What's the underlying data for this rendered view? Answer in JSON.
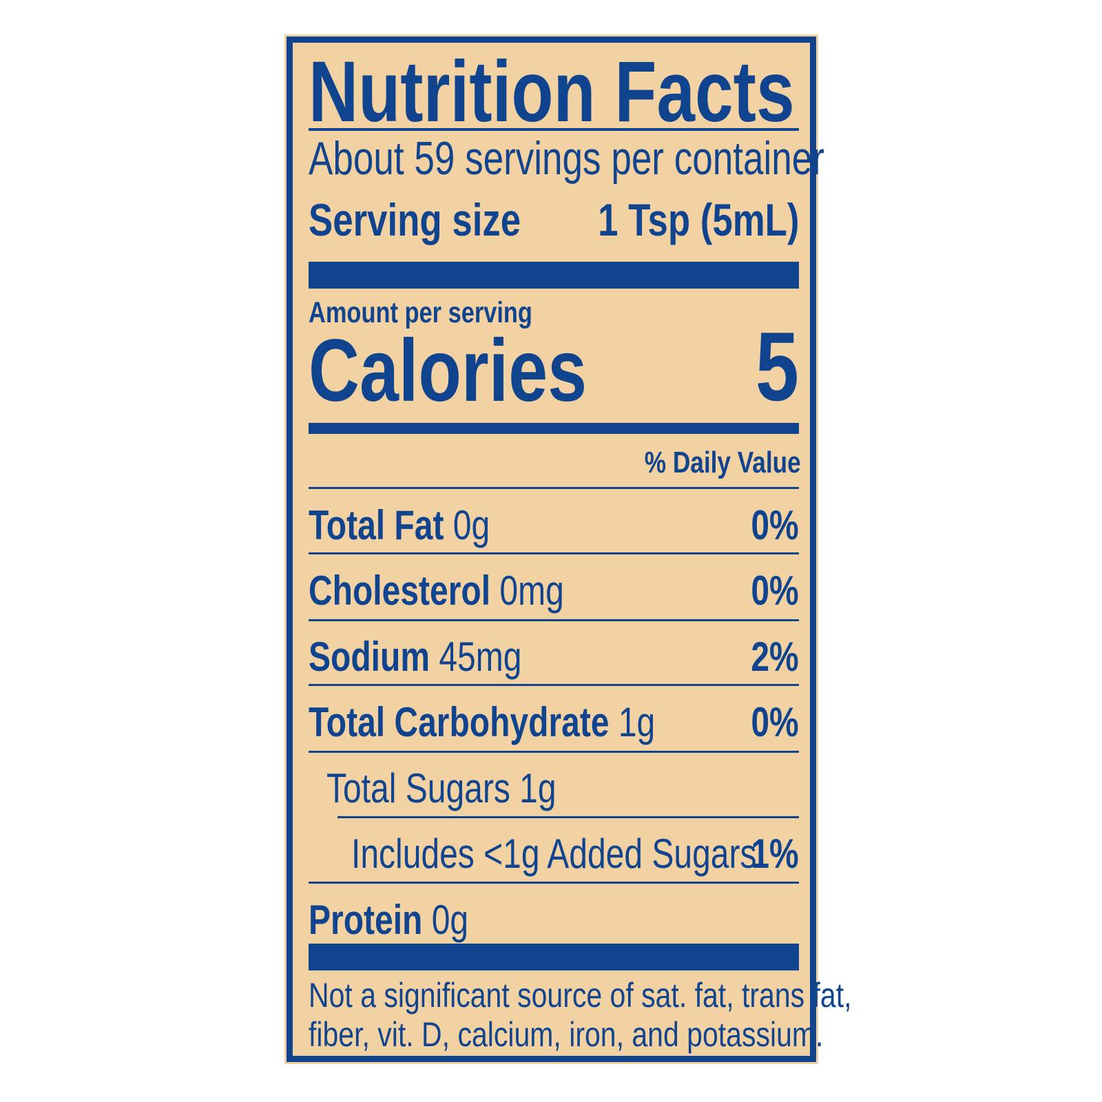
{
  "title": "Nutrition Facts",
  "servings_per_container": "About 59 servings per container",
  "serving_size": {
    "label": "Serving size",
    "value": "1 Tsp (5mL)"
  },
  "amount_per_serving": "Amount per serving",
  "calories": {
    "label": "Calories",
    "value": "5"
  },
  "daily_value_header": "% Daily Value",
  "nutrients": [
    {
      "name": "Total Fat",
      "amount": "0g",
      "dv": "0%"
    },
    {
      "name": "Cholesterol",
      "amount": "0mg",
      "dv": "0%"
    },
    {
      "name": "Sodium",
      "amount": "45mg",
      "dv": "2%"
    },
    {
      "name": "Total Carbohydrate",
      "amount": "1g",
      "dv": "0%"
    },
    {
      "name": "Total Sugars 1g",
      "amount": "",
      "dv": ""
    },
    {
      "name": "Includes <1g Added Sugars",
      "amount": "",
      "dv": "1%"
    },
    {
      "name": "Protein",
      "amount": "0g",
      "dv": ""
    }
  ],
  "footnote": [
    "Not a significant source of sat. fat, trans fat,",
    "fiber, vit. D, calcium, iron, and potassium."
  ],
  "colors": {
    "ink": "#10448f",
    "background": "#f2d2a2"
  }
}
